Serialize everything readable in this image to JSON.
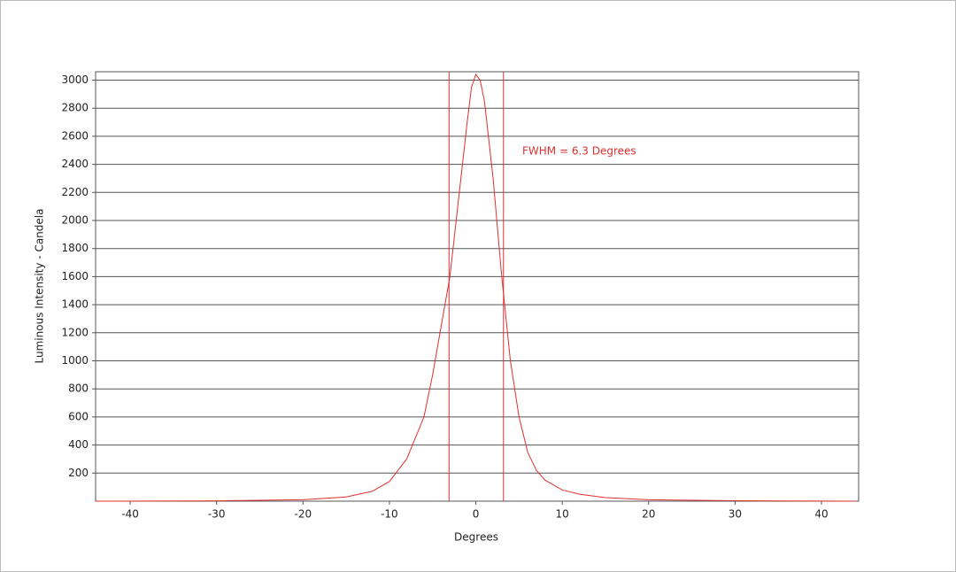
{
  "chart_data": {
    "type": "line",
    "x_label": "Degrees",
    "y_label": "Luminous Intensity - Candela",
    "annotation": "FWHM =  6.3 Degrees",
    "x": [
      -44,
      -30,
      -20,
      -15,
      -12,
      -10,
      -8,
      -6,
      -5,
      -4,
      -3,
      -2,
      -1,
      -0.5,
      0,
      0.5,
      1,
      2,
      3,
      4,
      5,
      6,
      7,
      8,
      10,
      12,
      15,
      20,
      30,
      44
    ],
    "series": [
      {
        "name": "Intensity",
        "color": "#e03030",
        "values": [
          0,
          2,
          10,
          30,
          70,
          140,
          300,
          600,
          900,
          1250,
          1600,
          2150,
          2700,
          2950,
          3040,
          3000,
          2850,
          2300,
          1600,
          1000,
          600,
          350,
          220,
          150,
          80,
          50,
          25,
          10,
          3,
          0
        ]
      }
    ],
    "vlines": [
      -3.1,
      3.2
    ],
    "vline_color": "#e03030",
    "xlim": [
      -44,
      44.3
    ],
    "xticks": [
      -40,
      -30,
      -20,
      -10,
      0,
      10,
      20,
      30,
      40
    ],
    "ylim": [
      0,
      3060
    ],
    "yticks": [
      200,
      400,
      600,
      800,
      1000,
      1200,
      1400,
      1600,
      1800,
      2000,
      2200,
      2400,
      2600,
      2800,
      3000
    ],
    "grid": true
  }
}
